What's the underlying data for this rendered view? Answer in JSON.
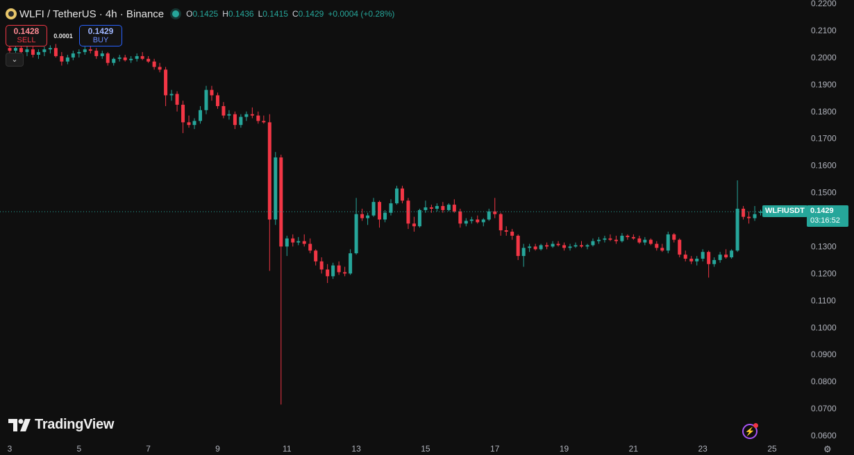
{
  "legend": {
    "title": "WLFI / TetherUS · 4h · Binance",
    "open_label": "O",
    "open": "0.1425",
    "high_label": "H",
    "high": "0.1436",
    "low_label": "L",
    "low": "0.1415",
    "close_label": "C",
    "close": "0.1429",
    "change": "+0.0004 (+0.28%)"
  },
  "trade": {
    "sell_price": "0.1428",
    "sell_label": "SELL",
    "spread": "0.0001",
    "buy_price": "0.1429",
    "buy_label": "BUY"
  },
  "collapse_icon": "chevron-down-icon",
  "price_tag": {
    "symbol": "WLFIUSDT",
    "price": "0.1429",
    "countdown": "03:16:52"
  },
  "brand": {
    "name": "TradingView"
  },
  "colors": {
    "up": "#26a69a",
    "down": "#f23645",
    "background": "#0f0f0f",
    "grid": "#1c1c1c"
  },
  "chart_data": {
    "type": "candlestick",
    "ylim": [
      0.058,
      0.222
    ],
    "y_ticks": [
      "0.0600",
      "0.0700",
      "0.0800",
      "0.0900",
      "0.1000",
      "0.1100",
      "0.1200",
      "0.1300",
      "0.1400",
      "0.1500",
      "0.1600",
      "0.1700",
      "0.1800",
      "0.1900",
      "0.2000",
      "0.2100",
      "0.2200"
    ],
    "x_tick_labels": [
      "3",
      "5",
      "7",
      "9",
      "11",
      "13",
      "15",
      "17",
      "19",
      "21",
      "23",
      "25"
    ],
    "x_tick_days": [
      3,
      5,
      7,
      9,
      11,
      13,
      15,
      17,
      19,
      21,
      23,
      25
    ],
    "last_price": 0.1429,
    "grid": false,
    "candles": [
      {
        "d": 3.0,
        "o": 0.2035,
        "h": 0.206,
        "l": 0.2015,
        "c": 0.2025
      },
      {
        "d": 3.17,
        "o": 0.2025,
        "h": 0.2045,
        "l": 0.201,
        "c": 0.2035
      },
      {
        "d": 3.33,
        "o": 0.2035,
        "h": 0.205,
        "l": 0.2015,
        "c": 0.202
      },
      {
        "d": 3.5,
        "o": 0.202,
        "h": 0.2045,
        "l": 0.2005,
        "c": 0.203
      },
      {
        "d": 3.67,
        "o": 0.203,
        "h": 0.204,
        "l": 0.2,
        "c": 0.201
      },
      {
        "d": 3.83,
        "o": 0.201,
        "h": 0.203,
        "l": 0.1995,
        "c": 0.202
      },
      {
        "d": 4.0,
        "o": 0.202,
        "h": 0.204,
        "l": 0.2005,
        "c": 0.203
      },
      {
        "d": 4.17,
        "o": 0.203,
        "h": 0.2045,
        "l": 0.2015,
        "c": 0.2035
      },
      {
        "d": 4.33,
        "o": 0.2035,
        "h": 0.205,
        "l": 0.2,
        "c": 0.2005
      },
      {
        "d": 4.5,
        "o": 0.2005,
        "h": 0.202,
        "l": 0.197,
        "c": 0.1985
      },
      {
        "d": 4.67,
        "o": 0.1985,
        "h": 0.201,
        "l": 0.1975,
        "c": 0.2
      },
      {
        "d": 4.83,
        "o": 0.2,
        "h": 0.2025,
        "l": 0.199,
        "c": 0.2015
      },
      {
        "d": 5.0,
        "o": 0.2015,
        "h": 0.203,
        "l": 0.2,
        "c": 0.202
      },
      {
        "d": 5.17,
        "o": 0.202,
        "h": 0.204,
        "l": 0.201,
        "c": 0.203
      },
      {
        "d": 5.33,
        "o": 0.203,
        "h": 0.2045,
        "l": 0.2015,
        "c": 0.2025
      },
      {
        "d": 5.5,
        "o": 0.2025,
        "h": 0.2035,
        "l": 0.1995,
        "c": 0.2005
      },
      {
        "d": 5.67,
        "o": 0.2005,
        "h": 0.2025,
        "l": 0.1995,
        "c": 0.2015
      },
      {
        "d": 5.83,
        "o": 0.2015,
        "h": 0.202,
        "l": 0.197,
        "c": 0.198
      },
      {
        "d": 6.0,
        "o": 0.198,
        "h": 0.2,
        "l": 0.197,
        "c": 0.1995
      },
      {
        "d": 6.17,
        "o": 0.1995,
        "h": 0.201,
        "l": 0.1985,
        "c": 0.2
      },
      {
        "d": 6.33,
        "o": 0.2,
        "h": 0.201,
        "l": 0.1985,
        "c": 0.199
      },
      {
        "d": 6.5,
        "o": 0.199,
        "h": 0.2005,
        "l": 0.198,
        "c": 0.1995
      },
      {
        "d": 6.67,
        "o": 0.1995,
        "h": 0.2015,
        "l": 0.1985,
        "c": 0.2005
      },
      {
        "d": 6.83,
        "o": 0.2005,
        "h": 0.202,
        "l": 0.199,
        "c": 0.1995
      },
      {
        "d": 7.0,
        "o": 0.1995,
        "h": 0.2005,
        "l": 0.198,
        "c": 0.1985
      },
      {
        "d": 7.17,
        "o": 0.1985,
        "h": 0.1995,
        "l": 0.1955,
        "c": 0.1965
      },
      {
        "d": 7.33,
        "o": 0.1965,
        "h": 0.198,
        "l": 0.1945,
        "c": 0.1955
      },
      {
        "d": 7.5,
        "o": 0.1955,
        "h": 0.1965,
        "l": 0.182,
        "c": 0.186
      },
      {
        "d": 7.67,
        "o": 0.186,
        "h": 0.188,
        "l": 0.184,
        "c": 0.1865
      },
      {
        "d": 7.83,
        "o": 0.1865,
        "h": 0.1875,
        "l": 0.18,
        "c": 0.1825
      },
      {
        "d": 8.0,
        "o": 0.1825,
        "h": 0.184,
        "l": 0.172,
        "c": 0.176
      },
      {
        "d": 8.17,
        "o": 0.176,
        "h": 0.1785,
        "l": 0.174,
        "c": 0.175
      },
      {
        "d": 8.33,
        "o": 0.175,
        "h": 0.1775,
        "l": 0.1735,
        "c": 0.1765
      },
      {
        "d": 8.5,
        "o": 0.1765,
        "h": 0.182,
        "l": 0.1755,
        "c": 0.1805
      },
      {
        "d": 8.67,
        "o": 0.1805,
        "h": 0.1895,
        "l": 0.179,
        "c": 0.188
      },
      {
        "d": 8.83,
        "o": 0.188,
        "h": 0.1895,
        "l": 0.184,
        "c": 0.186
      },
      {
        "d": 9.0,
        "o": 0.186,
        "h": 0.187,
        "l": 0.181,
        "c": 0.182
      },
      {
        "d": 9.17,
        "o": 0.182,
        "h": 0.1835,
        "l": 0.1775,
        "c": 0.1785
      },
      {
        "d": 9.33,
        "o": 0.1785,
        "h": 0.1805,
        "l": 0.177,
        "c": 0.179
      },
      {
        "d": 9.5,
        "o": 0.179,
        "h": 0.18,
        "l": 0.1735,
        "c": 0.175
      },
      {
        "d": 9.67,
        "o": 0.175,
        "h": 0.179,
        "l": 0.174,
        "c": 0.178
      },
      {
        "d": 9.83,
        "o": 0.178,
        "h": 0.18,
        "l": 0.1765,
        "c": 0.179
      },
      {
        "d": 10.0,
        "o": 0.179,
        "h": 0.1815,
        "l": 0.1775,
        "c": 0.1785
      },
      {
        "d": 10.17,
        "o": 0.1785,
        "h": 0.18,
        "l": 0.1755,
        "c": 0.1765
      },
      {
        "d": 10.33,
        "o": 0.1765,
        "h": 0.1785,
        "l": 0.1755,
        "c": 0.176
      },
      {
        "d": 10.5,
        "o": 0.176,
        "h": 0.179,
        "l": 0.121,
        "c": 0.14
      },
      {
        "d": 10.67,
        "o": 0.14,
        "h": 0.165,
        "l": 0.138,
        "c": 0.163
      },
      {
        "d": 10.83,
        "o": 0.163,
        "h": 0.164,
        "l": 0.0715,
        "c": 0.13
      },
      {
        "d": 11.0,
        "o": 0.13,
        "h": 0.134,
        "l": 0.1265,
        "c": 0.133
      },
      {
        "d": 11.17,
        "o": 0.133,
        "h": 0.1345,
        "l": 0.13,
        "c": 0.1315
      },
      {
        "d": 11.33,
        "o": 0.1315,
        "h": 0.1335,
        "l": 0.1305,
        "c": 0.132
      },
      {
        "d": 11.5,
        "o": 0.132,
        "h": 0.1345,
        "l": 0.13,
        "c": 0.131
      },
      {
        "d": 11.67,
        "o": 0.131,
        "h": 0.133,
        "l": 0.1275,
        "c": 0.1285
      },
      {
        "d": 11.83,
        "o": 0.1285,
        "h": 0.129,
        "l": 0.123,
        "c": 0.1245
      },
      {
        "d": 12.0,
        "o": 0.1245,
        "h": 0.126,
        "l": 0.12,
        "c": 0.1215
      },
      {
        "d": 12.17,
        "o": 0.1215,
        "h": 0.1235,
        "l": 0.1165,
        "c": 0.119
      },
      {
        "d": 12.33,
        "o": 0.119,
        "h": 0.124,
        "l": 0.118,
        "c": 0.123
      },
      {
        "d": 12.5,
        "o": 0.123,
        "h": 0.1245,
        "l": 0.1195,
        "c": 0.1205
      },
      {
        "d": 12.67,
        "o": 0.1205,
        "h": 0.1225,
        "l": 0.119,
        "c": 0.12
      },
      {
        "d": 12.83,
        "o": 0.12,
        "h": 0.129,
        "l": 0.1195,
        "c": 0.1275
      },
      {
        "d": 13.0,
        "o": 0.1275,
        "h": 0.148,
        "l": 0.127,
        "c": 0.142
      },
      {
        "d": 13.17,
        "o": 0.142,
        "h": 0.144,
        "l": 0.1395,
        "c": 0.1405
      },
      {
        "d": 13.33,
        "o": 0.1405,
        "h": 0.1425,
        "l": 0.138,
        "c": 0.1415
      },
      {
        "d": 13.5,
        "o": 0.1415,
        "h": 0.148,
        "l": 0.141,
        "c": 0.1465
      },
      {
        "d": 13.67,
        "o": 0.1465,
        "h": 0.147,
        "l": 0.137,
        "c": 0.14
      },
      {
        "d": 13.83,
        "o": 0.14,
        "h": 0.1435,
        "l": 0.139,
        "c": 0.1425
      },
      {
        "d": 14.0,
        "o": 0.1425,
        "h": 0.1475,
        "l": 0.1415,
        "c": 0.146
      },
      {
        "d": 14.17,
        "o": 0.146,
        "h": 0.1525,
        "l": 0.1455,
        "c": 0.1515
      },
      {
        "d": 14.33,
        "o": 0.1515,
        "h": 0.1525,
        "l": 0.146,
        "c": 0.147
      },
      {
        "d": 14.5,
        "o": 0.147,
        "h": 0.148,
        "l": 0.1365,
        "c": 0.1385
      },
      {
        "d": 14.67,
        "o": 0.1385,
        "h": 0.141,
        "l": 0.1355,
        "c": 0.1375
      },
      {
        "d": 14.83,
        "o": 0.1375,
        "h": 0.144,
        "l": 0.137,
        "c": 0.1435
      },
      {
        "d": 15.0,
        "o": 0.1435,
        "h": 0.147,
        "l": 0.1425,
        "c": 0.1445
      },
      {
        "d": 15.17,
        "o": 0.1445,
        "h": 0.1455,
        "l": 0.1425,
        "c": 0.144
      },
      {
        "d": 15.33,
        "o": 0.144,
        "h": 0.146,
        "l": 0.143,
        "c": 0.145
      },
      {
        "d": 15.5,
        "o": 0.145,
        "h": 0.1465,
        "l": 0.1425,
        "c": 0.1435
      },
      {
        "d": 15.67,
        "o": 0.1435,
        "h": 0.146,
        "l": 0.143,
        "c": 0.1455
      },
      {
        "d": 15.83,
        "o": 0.1455,
        "h": 0.1475,
        "l": 0.1425,
        "c": 0.143
      },
      {
        "d": 16.0,
        "o": 0.143,
        "h": 0.144,
        "l": 0.137,
        "c": 0.1385
      },
      {
        "d": 16.17,
        "o": 0.1385,
        "h": 0.1405,
        "l": 0.1375,
        "c": 0.1395
      },
      {
        "d": 16.33,
        "o": 0.1395,
        "h": 0.141,
        "l": 0.1385,
        "c": 0.14
      },
      {
        "d": 16.5,
        "o": 0.14,
        "h": 0.1415,
        "l": 0.1385,
        "c": 0.139
      },
      {
        "d": 16.67,
        "o": 0.139,
        "h": 0.1405,
        "l": 0.1375,
        "c": 0.14
      },
      {
        "d": 16.83,
        "o": 0.14,
        "h": 0.144,
        "l": 0.1395,
        "c": 0.143
      },
      {
        "d": 17.0,
        "o": 0.143,
        "h": 0.148,
        "l": 0.1405,
        "c": 0.142
      },
      {
        "d": 17.17,
        "o": 0.142,
        "h": 0.1425,
        "l": 0.134,
        "c": 0.136
      },
      {
        "d": 17.33,
        "o": 0.136,
        "h": 0.1375,
        "l": 0.134,
        "c": 0.1355
      },
      {
        "d": 17.5,
        "o": 0.1355,
        "h": 0.1365,
        "l": 0.1325,
        "c": 0.134
      },
      {
        "d": 17.67,
        "o": 0.134,
        "h": 0.1345,
        "l": 0.125,
        "c": 0.1265
      },
      {
        "d": 17.83,
        "o": 0.1265,
        "h": 0.131,
        "l": 0.1225,
        "c": 0.1295
      },
      {
        "d": 18.0,
        "o": 0.1295,
        "h": 0.131,
        "l": 0.128,
        "c": 0.13
      },
      {
        "d": 18.17,
        "o": 0.13,
        "h": 0.131,
        "l": 0.1285,
        "c": 0.129
      },
      {
        "d": 18.33,
        "o": 0.129,
        "h": 0.131,
        "l": 0.1285,
        "c": 0.1305
      },
      {
        "d": 18.5,
        "o": 0.1305,
        "h": 0.1315,
        "l": 0.129,
        "c": 0.13
      },
      {
        "d": 18.67,
        "o": 0.13,
        "h": 0.132,
        "l": 0.1295,
        "c": 0.131
      },
      {
        "d": 18.83,
        "o": 0.131,
        "h": 0.132,
        "l": 0.13,
        "c": 0.1305
      },
      {
        "d": 19.0,
        "o": 0.1305,
        "h": 0.1315,
        "l": 0.1285,
        "c": 0.1295
      },
      {
        "d": 19.17,
        "o": 0.1295,
        "h": 0.131,
        "l": 0.1285,
        "c": 0.13
      },
      {
        "d": 19.33,
        "o": 0.13,
        "h": 0.1315,
        "l": 0.1295,
        "c": 0.1305
      },
      {
        "d": 19.5,
        "o": 0.1305,
        "h": 0.132,
        "l": 0.1295,
        "c": 0.13
      },
      {
        "d": 19.67,
        "o": 0.13,
        "h": 0.131,
        "l": 0.129,
        "c": 0.1305
      },
      {
        "d": 19.83,
        "o": 0.1305,
        "h": 0.133,
        "l": 0.13,
        "c": 0.132
      },
      {
        "d": 20.0,
        "o": 0.132,
        "h": 0.1335,
        "l": 0.131,
        "c": 0.1325
      },
      {
        "d": 20.17,
        "o": 0.1325,
        "h": 0.134,
        "l": 0.1315,
        "c": 0.133
      },
      {
        "d": 20.33,
        "o": 0.133,
        "h": 0.1345,
        "l": 0.132,
        "c": 0.1325
      },
      {
        "d": 20.5,
        "o": 0.1325,
        "h": 0.134,
        "l": 0.131,
        "c": 0.132
      },
      {
        "d": 20.67,
        "o": 0.132,
        "h": 0.135,
        "l": 0.1315,
        "c": 0.134
      },
      {
        "d": 20.83,
        "o": 0.134,
        "h": 0.1345,
        "l": 0.1325,
        "c": 0.1335
      },
      {
        "d": 21.0,
        "o": 0.1335,
        "h": 0.1345,
        "l": 0.1325,
        "c": 0.133
      },
      {
        "d": 21.17,
        "o": 0.133,
        "h": 0.134,
        "l": 0.131,
        "c": 0.1315
      },
      {
        "d": 21.33,
        "o": 0.1315,
        "h": 0.1335,
        "l": 0.1305,
        "c": 0.1325
      },
      {
        "d": 21.5,
        "o": 0.1325,
        "h": 0.133,
        "l": 0.1305,
        "c": 0.131
      },
      {
        "d": 21.67,
        "o": 0.131,
        "h": 0.132,
        "l": 0.1285,
        "c": 0.1295
      },
      {
        "d": 21.83,
        "o": 0.1295,
        "h": 0.131,
        "l": 0.128,
        "c": 0.1285
      },
      {
        "d": 22.0,
        "o": 0.1285,
        "h": 0.1355,
        "l": 0.1275,
        "c": 0.1345
      },
      {
        "d": 22.17,
        "o": 0.1345,
        "h": 0.135,
        "l": 0.1315,
        "c": 0.1325
      },
      {
        "d": 22.33,
        "o": 0.1325,
        "h": 0.133,
        "l": 0.126,
        "c": 0.127
      },
      {
        "d": 22.5,
        "o": 0.127,
        "h": 0.1285,
        "l": 0.1245,
        "c": 0.1255
      },
      {
        "d": 22.67,
        "o": 0.1255,
        "h": 0.1265,
        "l": 0.1235,
        "c": 0.1245
      },
      {
        "d": 22.83,
        "o": 0.1245,
        "h": 0.1265,
        "l": 0.123,
        "c": 0.1255
      },
      {
        "d": 23.0,
        "o": 0.1255,
        "h": 0.129,
        "l": 0.1245,
        "c": 0.128
      },
      {
        "d": 23.17,
        "o": 0.128,
        "h": 0.1285,
        "l": 0.1185,
        "c": 0.1235
      },
      {
        "d": 23.33,
        "o": 0.1235,
        "h": 0.126,
        "l": 0.1225,
        "c": 0.125
      },
      {
        "d": 23.5,
        "o": 0.125,
        "h": 0.128,
        "l": 0.124,
        "c": 0.127
      },
      {
        "d": 23.67,
        "o": 0.127,
        "h": 0.129,
        "l": 0.1255,
        "c": 0.126
      },
      {
        "d": 23.83,
        "o": 0.126,
        "h": 0.129,
        "l": 0.1255,
        "c": 0.1285
      },
      {
        "d": 24.0,
        "o": 0.1285,
        "h": 0.1545,
        "l": 0.128,
        "c": 0.144
      },
      {
        "d": 24.17,
        "o": 0.144,
        "h": 0.145,
        "l": 0.14,
        "c": 0.141
      },
      {
        "d": 24.33,
        "o": 0.141,
        "h": 0.143,
        "l": 0.1385,
        "c": 0.1405
      },
      {
        "d": 24.5,
        "o": 0.1405,
        "h": 0.145,
        "l": 0.1395,
        "c": 0.142
      },
      {
        "d": 24.67,
        "o": 0.1425,
        "h": 0.1436,
        "l": 0.1415,
        "c": 0.1429
      }
    ]
  }
}
